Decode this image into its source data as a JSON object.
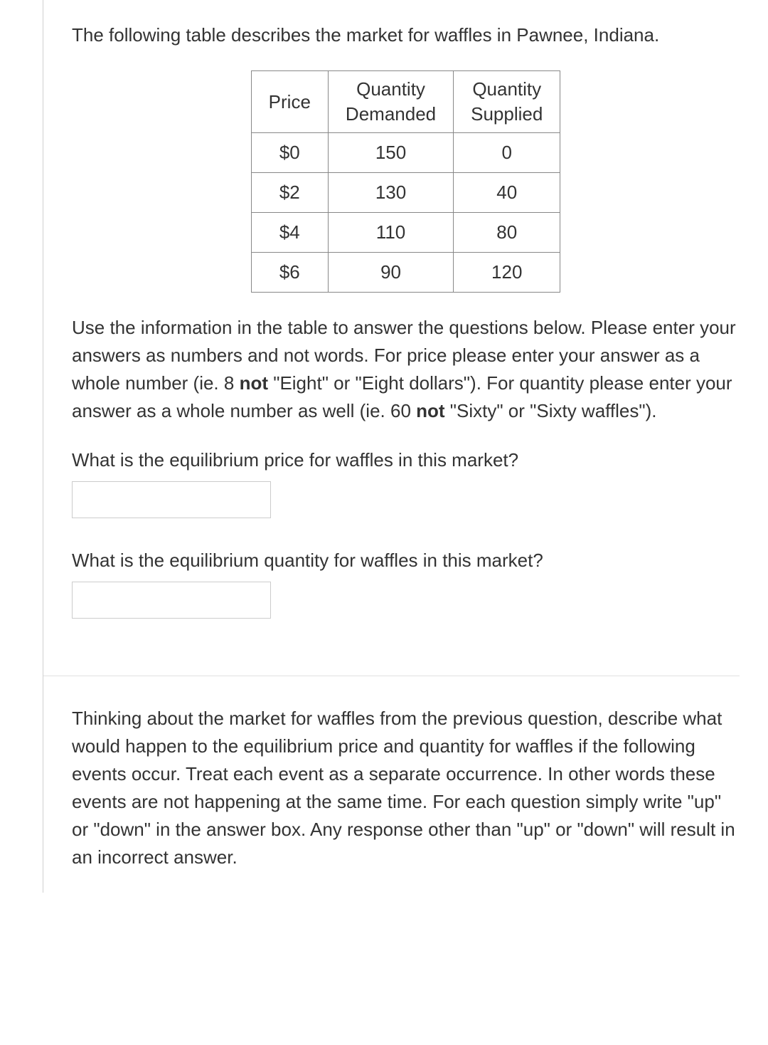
{
  "question1": {
    "intro": "The following table describes the market for waffles in Pawnee, Indiana.",
    "table": {
      "headers": [
        "Price",
        "Quantity Demanded",
        "Quantity Supplied"
      ],
      "rows": [
        [
          "$0",
          "150",
          "0"
        ],
        [
          "$2",
          "130",
          "40"
        ],
        [
          "$4",
          "110",
          "80"
        ],
        [
          "$6",
          "90",
          "120"
        ]
      ]
    },
    "instructions_pre": "Use the information in the table to answer the questions below. Please enter your answers as numbers and not words. For price please enter your answer as a whole number (ie. 8 ",
    "instructions_bold1": "not",
    "instructions_mid1": " \"Eight\" or \"Eight dollars\"). For quantity please enter your answer as a whole number as well (ie. 60 ",
    "instructions_bold2": "not",
    "instructions_post": " \"Sixty\" or \"Sixty waffles\").",
    "sub_q1": "What is the equilibrium price for waffles in this market?",
    "sub_q2": "What is the equilibrium quantity for waffles in this market?"
  },
  "question2": {
    "text": "Thinking about the market for waffles from the previous question, describe what would happen to the equilibrium price and quantity for waffles if the following events occur. Treat each event as a separate occurrence. In other words these events are not happening at the same time. For each question simply write \"up\" or \"down\" in the answer box. Any response other than \"up\" or \"down\" will result in an incorrect answer."
  },
  "styling": {
    "text_color": "#333333",
    "border_color": "#888888",
    "input_border_color": "#cccccc",
    "background_color": "#ffffff",
    "font_size": 26
  }
}
